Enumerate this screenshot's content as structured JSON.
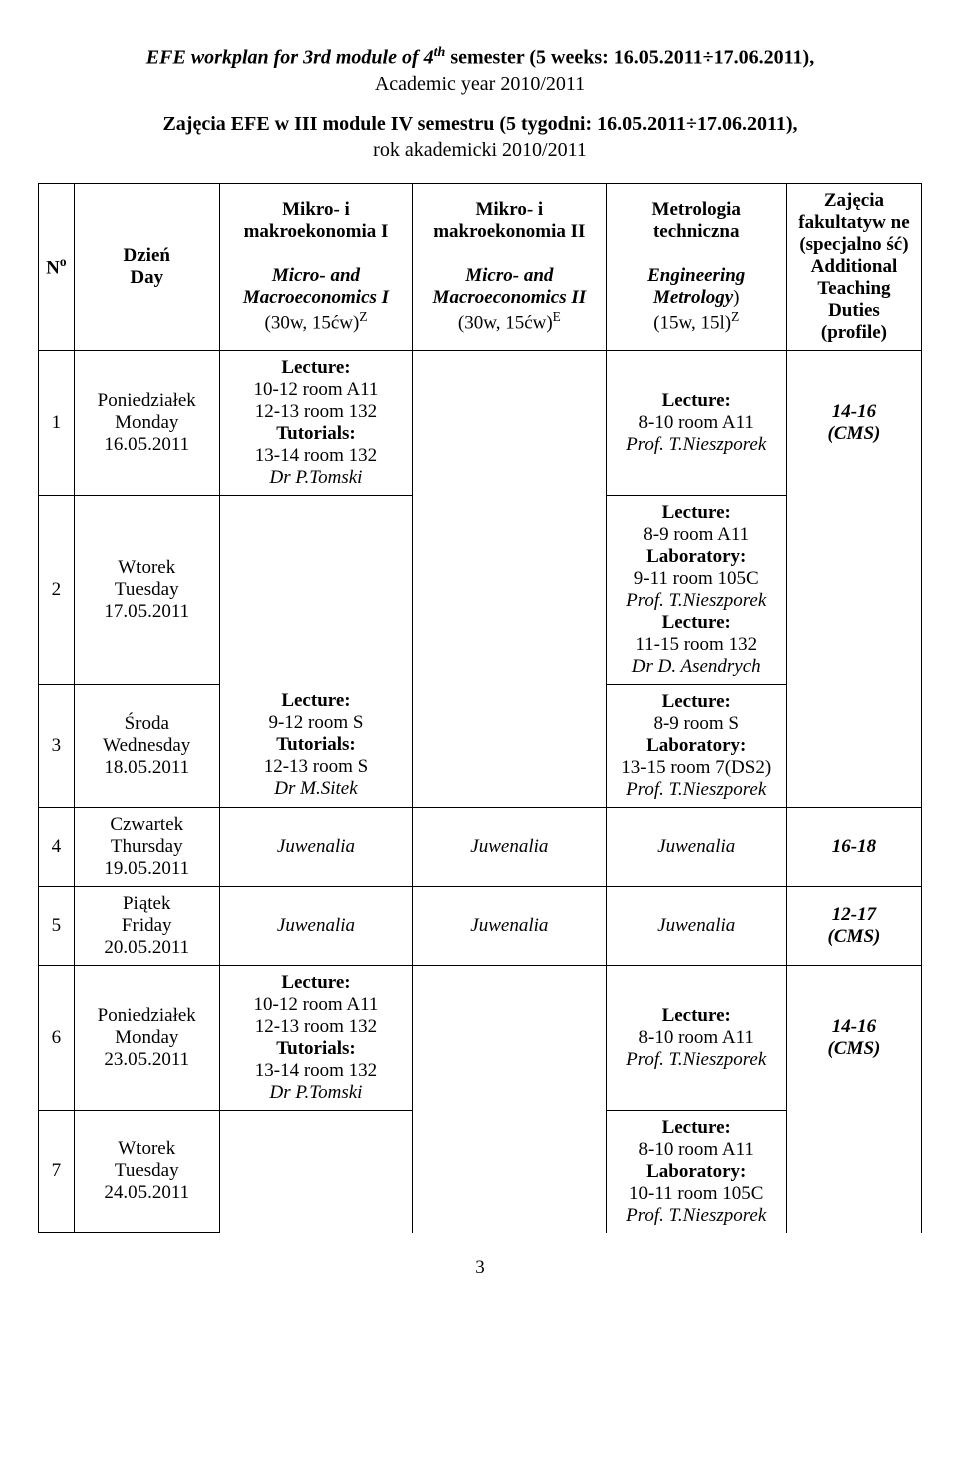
{
  "title": {
    "line1_a": "EFE workplan for 3rd module of 4",
    "line1_sup": "th",
    "line1_b": " semester (5 weeks: 16.05.2011÷17.06.2011),",
    "line2": "Academic year 2010/2011",
    "line3": "Zajęcia EFE w III module IV semestru (5 tygodni: 16.05.2011÷17.06.2011),",
    "line4": "rok akademicki 2010/2011"
  },
  "headers": {
    "no_a": "N",
    "no_sup": "o",
    "day_a": "Dzień",
    "day_b": "Day",
    "m1_a": "Mikro- i makroekonomia I",
    "m1_b": "Micro- and Macroeconomics I",
    "m1_c_a": "(30w, 15ćw)",
    "m1_c_sup": "Z",
    "m2_a": "Mikro- i makroekonomia II",
    "m2_b": "Micro- and Macroeconomics II",
    "m2_c_a": "(30w, 15ćw)",
    "m2_c_sup": "E",
    "metr_a": "Metrologia techniczna",
    "metr_b": "Engineering Metrology",
    "metr_c_a": ")",
    "metr_c_prefix": "",
    "metr_c_b": "(15w, 15l)",
    "metr_c_sup": "Z",
    "opt_a": "Zajęcia fakultatyw ne (specjalno ść) Additional Teaching Duties (profile)"
  },
  "rows": {
    "r1": {
      "no": "1",
      "day_a": "Poniedziałek",
      "day_b": "Monday",
      "day_c": "16.05.2011",
      "m1_lec": "Lecture:",
      "m1_l1": "10-12 room A11",
      "m1_l2": "12-13 room 132",
      "m1_tut": "Tutorials:",
      "m1_l3": "13-14 room 132",
      "m1_auth": "Dr P.Tomski",
      "metr_lec": "Lecture:",
      "metr_l1": "8-10 room A11",
      "metr_auth": "Prof. T.Nieszporek",
      "opt_a": "14-16",
      "opt_b": "(CMS)"
    },
    "r2": {
      "no": "2",
      "day_a": "Wtorek",
      "day_b": "Tuesday",
      "day_c": "17.05.2011",
      "metr_lec1": "Lecture:",
      "metr_l1": "8-9 room A11",
      "metr_lab": "Laboratory:",
      "metr_l2": "9-11 room 105C",
      "metr_auth1": "Prof. T.Nieszporek",
      "metr_lec2": "Lecture:",
      "metr_l3": "11-15 room 132",
      "metr_auth2": "Dr D. Asendrych"
    },
    "r3": {
      "no": "3",
      "day_a": "Środa",
      "day_b": "Wednesday",
      "day_c": "18.05.2011",
      "m1_lec": "Lecture:",
      "m1_l1": "9-12 room S",
      "m1_tut": "Tutorials:",
      "m1_l2": "12-13 room S",
      "m1_auth": "Dr M.Sitek",
      "metr_lec": "Lecture:",
      "metr_l1": "8-9 room S",
      "metr_lab": "Laboratory:",
      "metr_l2": "13-15 room 7(DS2)",
      "metr_auth": "Prof. T.Nieszporek"
    },
    "r4": {
      "no": "4",
      "day_a": "Czwartek",
      "day_b": "Thursday",
      "day_c": "19.05.2011",
      "m1": "Juwenalia",
      "m2": "Juwenalia",
      "metr": "Juwenalia",
      "opt_a": "16-18"
    },
    "r5": {
      "no": "5",
      "day_a": "Piątek",
      "day_b": "Friday",
      "day_c": "20.05.2011",
      "m1": "Juwenalia",
      "m2": "Juwenalia",
      "metr": "Juwenalia",
      "opt_a": "12-17",
      "opt_b": "(CMS)"
    },
    "r6": {
      "no": "6",
      "day_a": "Poniedziałek",
      "day_b": "Monday",
      "day_c": "23.05.2011",
      "m1_lec": "Lecture:",
      "m1_l1": "10-12 room A11",
      "m1_l2": "12-13 room 132",
      "m1_tut": "Tutorials:",
      "m1_l3": "13-14 room 132",
      "m1_auth": "Dr P.Tomski",
      "metr_lec": "Lecture:",
      "metr_l1": "8-10 room A11",
      "metr_auth": "Prof. T.Nieszporek",
      "opt_a": "14-16",
      "opt_b": "(CMS)"
    },
    "r7": {
      "no": "7",
      "day_a": "Wtorek",
      "day_b": "Tuesday",
      "day_c": "24.05.2011",
      "metr_lec": "Lecture:",
      "metr_l1": "8-10 room A11",
      "metr_lab": "Laboratory:",
      "metr_l2": "10-11 room 105C",
      "metr_auth": "Prof. T.Nieszporek"
    }
  },
  "page_num": "3"
}
